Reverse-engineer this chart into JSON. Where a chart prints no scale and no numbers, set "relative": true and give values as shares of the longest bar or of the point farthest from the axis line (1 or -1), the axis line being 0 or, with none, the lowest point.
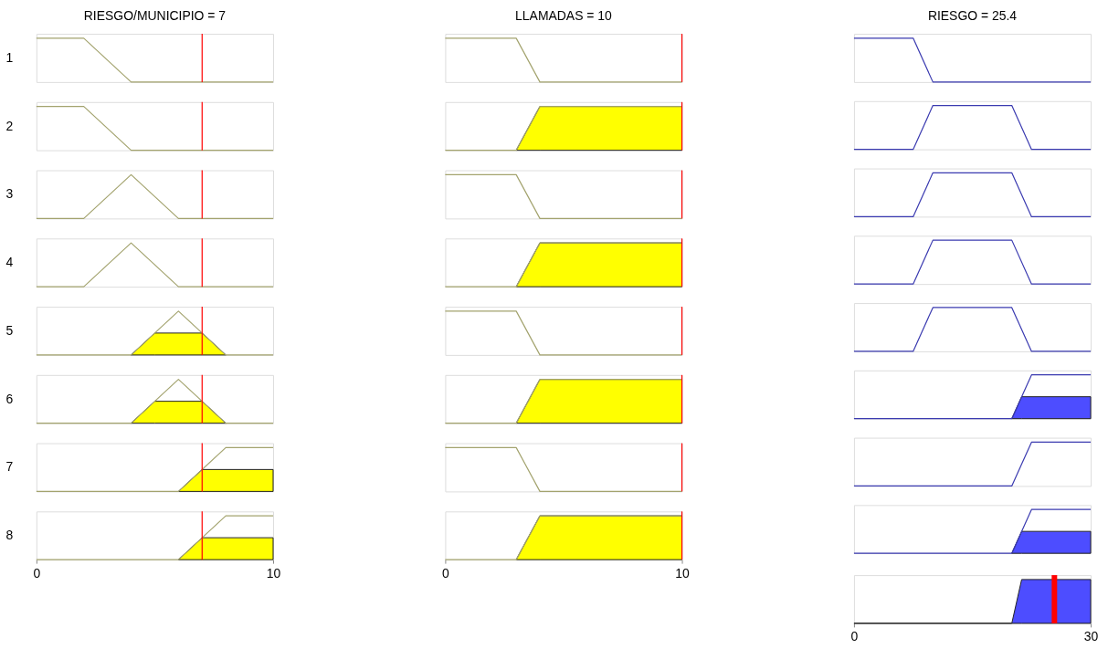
{
  "chart_data": [
    {
      "type": "line",
      "title": "RIESGO/MUNICIPIO = 7",
      "ylabel": "1",
      "relative": true,
      "xlim": [
        0,
        10
      ],
      "tick_labels": false,
      "ref_lines": [
        {
          "axis": "x",
          "value": 7,
          "color": "#ff0000"
        }
      ],
      "series": [
        {
          "type": "line",
          "color": "#a3a36e",
          "x": [
            0,
            2,
            4,
            10
          ],
          "values": [
            1,
            1,
            0,
            0
          ]
        }
      ]
    },
    {
      "type": "line",
      "ylabel": "2",
      "relative": true,
      "xlim": [
        0,
        10
      ],
      "tick_labels": false,
      "ref_lines": [
        {
          "axis": "x",
          "value": 7,
          "color": "#ff0000"
        }
      ],
      "series": [
        {
          "type": "line",
          "color": "#a3a36e",
          "x": [
            0,
            2,
            4,
            10
          ],
          "values": [
            1,
            1,
            0,
            0
          ]
        }
      ]
    },
    {
      "type": "line",
      "ylabel": "3",
      "relative": true,
      "xlim": [
        0,
        10
      ],
      "tick_labels": false,
      "ref_lines": [
        {
          "axis": "x",
          "value": 7,
          "color": "#ff0000"
        }
      ],
      "series": [
        {
          "type": "line",
          "color": "#a3a36e",
          "x": [
            0,
            2,
            4,
            6,
            10
          ],
          "values": [
            0,
            0,
            1,
            0,
            0
          ]
        }
      ]
    },
    {
      "type": "line",
      "ylabel": "4",
      "relative": true,
      "xlim": [
        0,
        10
      ],
      "tick_labels": false,
      "ref_lines": [
        {
          "axis": "x",
          "value": 7,
          "color": "#ff0000"
        }
      ],
      "series": [
        {
          "type": "line",
          "color": "#a3a36e",
          "x": [
            0,
            2,
            4,
            6,
            10
          ],
          "values": [
            0,
            0,
            1,
            0,
            0
          ]
        }
      ]
    },
    {
      "type": "line",
      "ylabel": "5",
      "relative": true,
      "xlim": [
        0,
        10
      ],
      "tick_labels": false,
      "ref_lines": [
        {
          "axis": "x",
          "value": 7,
          "color": "#ff0000"
        }
      ],
      "series": [
        {
          "type": "area",
          "color": "#ffff00",
          "x": [
            4,
            5,
            7,
            8
          ],
          "values": [
            0,
            0.5,
            0.5,
            0
          ]
        },
        {
          "type": "line",
          "color": "#a3a36e",
          "x": [
            0,
            4,
            6,
            8,
            10
          ],
          "values": [
            0,
            0,
            1,
            0,
            0
          ]
        }
      ]
    },
    {
      "type": "line",
      "ylabel": "6",
      "relative": true,
      "xlim": [
        0,
        10
      ],
      "tick_labels": false,
      "ref_lines": [
        {
          "axis": "x",
          "value": 7,
          "color": "#ff0000"
        }
      ],
      "series": [
        {
          "type": "area",
          "color": "#ffff00",
          "x": [
            4,
            5,
            7,
            8
          ],
          "values": [
            0,
            0.5,
            0.5,
            0
          ]
        },
        {
          "type": "line",
          "color": "#a3a36e",
          "x": [
            0,
            4,
            6,
            8,
            10
          ],
          "values": [
            0,
            0,
            1,
            0,
            0
          ]
        }
      ]
    },
    {
      "type": "line",
      "ylabel": "7",
      "relative": true,
      "xlim": [
        0,
        10
      ],
      "tick_labels": false,
      "ref_lines": [
        {
          "axis": "x",
          "value": 7,
          "color": "#ff0000"
        }
      ],
      "series": [
        {
          "type": "area",
          "color": "#ffff00",
          "x": [
            6,
            7,
            10
          ],
          "values": [
            0,
            0.5,
            0.5
          ]
        },
        {
          "type": "line",
          "color": "#a3a36e",
          "x": [
            0,
            6,
            8,
            10
          ],
          "values": [
            0,
            0,
            1,
            1
          ]
        }
      ]
    },
    {
      "type": "line",
      "ylabel": "8",
      "relative": true,
      "xlim": [
        0,
        10
      ],
      "xticks": [
        0,
        10
      ],
      "tick_labels": "x",
      "ref_lines": [
        {
          "axis": "x",
          "value": 7,
          "color": "#ff0000"
        }
      ],
      "series": [
        {
          "type": "area",
          "color": "#ffff00",
          "x": [
            6,
            7,
            10
          ],
          "values": [
            0,
            0.5,
            0.5
          ]
        },
        {
          "type": "line",
          "color": "#a3a36e",
          "x": [
            0,
            6,
            8,
            10
          ],
          "values": [
            0,
            0,
            1,
            1
          ]
        }
      ]
    },
    {
      "type": "line",
      "title": "LLAMADAS = 10",
      "relative": true,
      "xlim": [
        0,
        10
      ],
      "tick_labels": false,
      "ref_lines": [
        {
          "axis": "x",
          "value": 10,
          "color": "#ff0000"
        }
      ],
      "series": [
        {
          "type": "line",
          "color": "#a3a36e",
          "x": [
            0,
            3,
            4,
            10
          ],
          "values": [
            1,
            1,
            0,
            0
          ]
        }
      ]
    },
    {
      "type": "line",
      "relative": true,
      "xlim": [
        0,
        10
      ],
      "tick_labels": false,
      "ref_lines": [
        {
          "axis": "x",
          "value": 10,
          "color": "#ff0000"
        }
      ],
      "series": [
        {
          "type": "area",
          "color": "#ffff00",
          "x": [
            3,
            4,
            10
          ],
          "values": [
            0,
            1,
            1
          ]
        },
        {
          "type": "line",
          "color": "#a3a36e",
          "x": [
            0,
            3,
            4,
            10
          ],
          "values": [
            0,
            0,
            1,
            1
          ]
        }
      ]
    },
    {
      "type": "line",
      "relative": true,
      "xlim": [
        0,
        10
      ],
      "tick_labels": false,
      "ref_lines": [
        {
          "axis": "x",
          "value": 10,
          "color": "#ff0000"
        }
      ],
      "series": [
        {
          "type": "line",
          "color": "#a3a36e",
          "x": [
            0,
            3,
            4,
            10
          ],
          "values": [
            1,
            1,
            0,
            0
          ]
        }
      ]
    },
    {
      "type": "line",
      "relative": true,
      "xlim": [
        0,
        10
      ],
      "tick_labels": false,
      "ref_lines": [
        {
          "axis": "x",
          "value": 10,
          "color": "#ff0000"
        }
      ],
      "series": [
        {
          "type": "area",
          "color": "#ffff00",
          "x": [
            3,
            4,
            10
          ],
          "values": [
            0,
            1,
            1
          ]
        },
        {
          "type": "line",
          "color": "#a3a36e",
          "x": [
            0,
            3,
            4,
            10
          ],
          "values": [
            0,
            0,
            1,
            1
          ]
        }
      ]
    },
    {
      "type": "line",
      "relative": true,
      "xlim": [
        0,
        10
      ],
      "tick_labels": false,
      "ref_lines": [
        {
          "axis": "x",
          "value": 10,
          "color": "#ff0000"
        }
      ],
      "series": [
        {
          "type": "line",
          "color": "#a3a36e",
          "x": [
            0,
            3,
            4,
            10
          ],
          "values": [
            1,
            1,
            0,
            0
          ]
        }
      ]
    },
    {
      "type": "line",
      "relative": true,
      "xlim": [
        0,
        10
      ],
      "tick_labels": false,
      "ref_lines": [
        {
          "axis": "x",
          "value": 10,
          "color": "#ff0000"
        }
      ],
      "series": [
        {
          "type": "area",
          "color": "#ffff00",
          "x": [
            3,
            4,
            10
          ],
          "values": [
            0,
            1,
            1
          ]
        },
        {
          "type": "line",
          "color": "#a3a36e",
          "x": [
            0,
            3,
            4,
            10
          ],
          "values": [
            0,
            0,
            1,
            1
          ]
        }
      ]
    },
    {
      "type": "line",
      "relative": true,
      "xlim": [
        0,
        10
      ],
      "tick_labels": false,
      "ref_lines": [
        {
          "axis": "x",
          "value": 10,
          "color": "#ff0000"
        }
      ],
      "series": [
        {
          "type": "line",
          "color": "#a3a36e",
          "x": [
            0,
            3,
            4,
            10
          ],
          "values": [
            1,
            1,
            0,
            0
          ]
        }
      ]
    },
    {
      "type": "line",
      "relative": true,
      "xlim": [
        0,
        10
      ],
      "xticks": [
        0,
        10
      ],
      "tick_labels": "x",
      "ref_lines": [
        {
          "axis": "x",
          "value": 10,
          "color": "#ff0000"
        }
      ],
      "series": [
        {
          "type": "area",
          "color": "#ffff00",
          "x": [
            3,
            4,
            10
          ],
          "values": [
            0,
            1,
            1
          ]
        },
        {
          "type": "line",
          "color": "#a3a36e",
          "x": [
            0,
            3,
            4,
            10
          ],
          "values": [
            0,
            0,
            1,
            1
          ]
        }
      ]
    },
    {
      "type": "line",
      "title": "RIESGO = 25.4",
      "relative": true,
      "xlim": [
        0,
        30
      ],
      "tick_labels": false,
      "series": [
        {
          "type": "line",
          "color": "#3a3ab0",
          "x": [
            0,
            7.5,
            10,
            30
          ],
          "values": [
            1,
            1,
            0,
            0
          ]
        }
      ]
    },
    {
      "type": "line",
      "relative": true,
      "xlim": [
        0,
        30
      ],
      "tick_labels": false,
      "series": [
        {
          "type": "line",
          "color": "#3a3ab0",
          "x": [
            0,
            7.5,
            10,
            20,
            22.5,
            30
          ],
          "values": [
            0,
            0,
            1,
            1,
            0,
            0
          ]
        }
      ]
    },
    {
      "type": "line",
      "relative": true,
      "xlim": [
        0,
        30
      ],
      "tick_labels": false,
      "series": [
        {
          "type": "line",
          "color": "#3a3ab0",
          "x": [
            0,
            7.5,
            10,
            20,
            22.5,
            30
          ],
          "values": [
            0,
            0,
            1,
            1,
            0,
            0
          ]
        }
      ]
    },
    {
      "type": "line",
      "relative": true,
      "xlim": [
        0,
        30
      ],
      "tick_labels": false,
      "series": [
        {
          "type": "line",
          "color": "#3a3ab0",
          "x": [
            0,
            7.5,
            10,
            20,
            22.5,
            30
          ],
          "values": [
            0,
            0,
            1,
            1,
            0,
            0
          ]
        }
      ]
    },
    {
      "type": "line",
      "relative": true,
      "xlim": [
        0,
        30
      ],
      "tick_labels": false,
      "series": [
        {
          "type": "line",
          "color": "#3a3ab0",
          "x": [
            0,
            7.5,
            10,
            20,
            22.5,
            30
          ],
          "values": [
            0,
            0,
            1,
            1,
            0,
            0
          ]
        }
      ]
    },
    {
      "type": "line",
      "relative": true,
      "xlim": [
        0,
        30
      ],
      "tick_labels": false,
      "series": [
        {
          "type": "area",
          "color": "#4d4dff",
          "x": [
            20,
            21.25,
            30
          ],
          "values": [
            0,
            0.5,
            0.5
          ]
        },
        {
          "type": "line",
          "color": "#3a3ab0",
          "x": [
            0,
            20,
            22.5,
            30
          ],
          "values": [
            0,
            0,
            1,
            1
          ]
        }
      ]
    },
    {
      "type": "line",
      "relative": true,
      "xlim": [
        0,
        30
      ],
      "tick_labels": false,
      "series": [
        {
          "type": "line",
          "color": "#3a3ab0",
          "x": [
            0,
            20,
            22.5,
            30
          ],
          "values": [
            0,
            0,
            1,
            1
          ]
        }
      ]
    },
    {
      "type": "line",
      "relative": true,
      "xlim": [
        0,
        30
      ],
      "tick_labels": false,
      "series": [
        {
          "type": "area",
          "color": "#4d4dff",
          "x": [
            20,
            21.25,
            30
          ],
          "values": [
            0,
            0.5,
            0.5
          ]
        },
        {
          "type": "line",
          "color": "#3a3ab0",
          "x": [
            0,
            20,
            22.5,
            30
          ],
          "values": [
            0,
            0,
            1,
            1
          ]
        }
      ]
    },
    {
      "type": "area",
      "relative": true,
      "xlim": [
        0,
        30
      ],
      "xticks": [
        0,
        30
      ],
      "tick_labels": "x",
      "ref_lines": [
        {
          "axis": "x",
          "value": 25.4,
          "color": "#ff0000"
        }
      ],
      "series": [
        {
          "color": "#4d4dff",
          "x": [
            0,
            20,
            21.25,
            30
          ],
          "values": [
            0,
            0,
            1,
            1
          ]
        }
      ]
    }
  ]
}
